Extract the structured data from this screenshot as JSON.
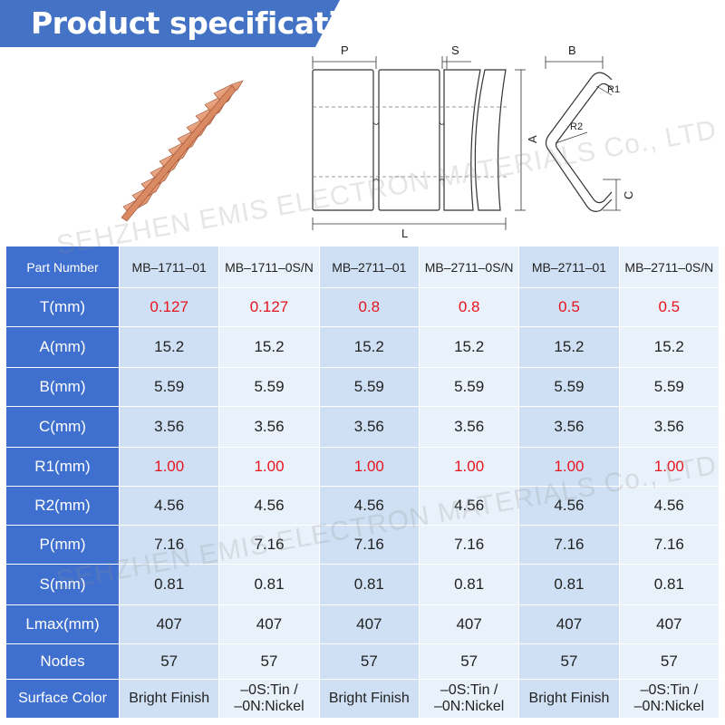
{
  "banner": {
    "title": "Product specifications",
    "bg_color": "#4472c4"
  },
  "diagram": {
    "labels": {
      "p": "P",
      "s": "S",
      "b": "B",
      "a": "A",
      "l": "L",
      "r1": "R1",
      "r2": "R2",
      "c": "C"
    }
  },
  "watermark": {
    "text": "SEHZHEN EMIS ELECTRON MATERIALS Co., LTD"
  },
  "table": {
    "header_label": "Part Number",
    "part_numbers": [
      "MB–1711–01",
      "MB–1711–0S/N",
      "MB–2711–01",
      "MB–2711–0S/N",
      "MB–2711–01",
      "MB–2711–0S/N"
    ],
    "rows": [
      {
        "label": "T(mm)",
        "values": [
          "0.127",
          "0.127",
          "0.8",
          "0.8",
          "0.5",
          "0.5"
        ],
        "highlight": true
      },
      {
        "label": "A(mm)",
        "values": [
          "15.2",
          "15.2",
          "15.2",
          "15.2",
          "15.2",
          "15.2"
        ],
        "highlight": false
      },
      {
        "label": "B(mm)",
        "values": [
          "5.59",
          "5.59",
          "5.59",
          "5.59",
          "5.59",
          "5.59"
        ],
        "highlight": false
      },
      {
        "label": "C(mm)",
        "values": [
          "3.56",
          "3.56",
          "3.56",
          "3.56",
          "3.56",
          "3.56"
        ],
        "highlight": false
      },
      {
        "label": "R1(mm)",
        "values": [
          "1.00",
          "1.00",
          "1.00",
          "1.00",
          "1.00",
          "1.00"
        ],
        "highlight": true
      },
      {
        "label": "R2(mm)",
        "values": [
          "4.56",
          "4.56",
          "4.56",
          "4.56",
          "4.56",
          "4.56"
        ],
        "highlight": false
      },
      {
        "label": "P(mm)",
        "values": [
          "7.16",
          "7.16",
          "7.16",
          "7.16",
          "7.16",
          "7.16"
        ],
        "highlight": false
      },
      {
        "label": "S(mm)",
        "values": [
          "0.81",
          "0.81",
          "0.81",
          "0.81",
          "0.81",
          "0.81"
        ],
        "highlight": false
      },
      {
        "label": "Lmax(mm)",
        "values": [
          "407",
          "407",
          "407",
          "407",
          "407",
          "407"
        ],
        "highlight": false
      },
      {
        "label": "Nodes",
        "values": [
          "57",
          "57",
          "57",
          "57",
          "57",
          "57"
        ],
        "highlight": false
      }
    ],
    "surface": {
      "label": "Surface Color",
      "values": [
        [
          "Bright Finish"
        ],
        [
          "–0S:Tin /",
          "–0N:Nickel"
        ],
        [
          "Bright Finish"
        ],
        [
          "–0S:Tin /",
          "–0N:Nickel"
        ],
        [
          "Bright Finish"
        ],
        [
          "–0S:Tin /",
          "–0N:Nickel"
        ]
      ]
    }
  }
}
